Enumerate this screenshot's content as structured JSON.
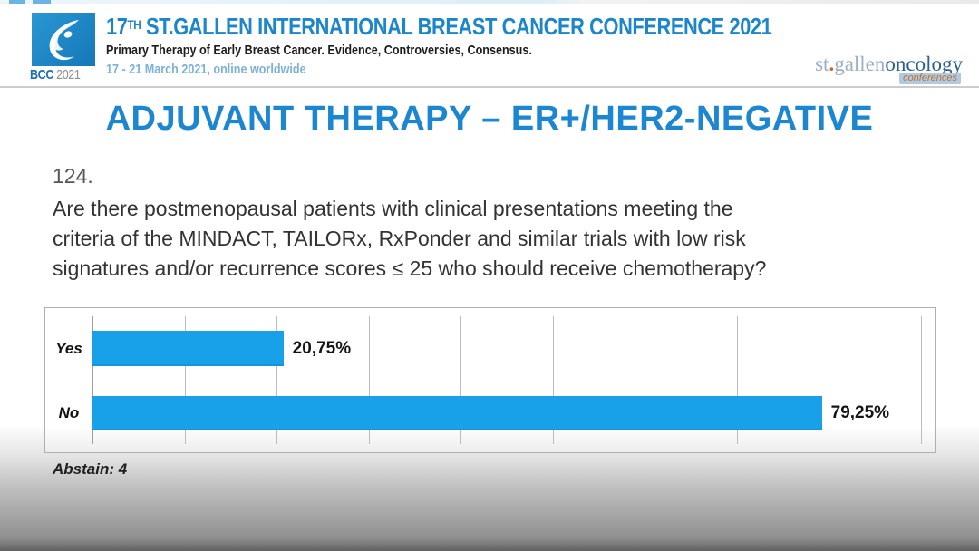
{
  "header": {
    "logo": {
      "bcc": "BCC",
      "year": "2021"
    },
    "title_num": "17",
    "title_sup": "TH",
    "title_rest": " ST.GALLEN INTERNATIONAL BREAST CANCER CONFERENCE 2021",
    "subtitle": "Primary Therapy of Early Breast Cancer. Evidence, Controversies, Consensus.",
    "dates": "17 - 21 March 2021, online worldwide",
    "right_logo": {
      "part1": "st",
      "dot": ".",
      "part2": "gallen",
      "part3": "oncology",
      "part4": "conferences"
    }
  },
  "slide": {
    "title": "ADJUVANT THERAPY – ER+/HER2-NEGATIVE",
    "question_number": "124.",
    "question_lines": [
      "Are there postmenopausal patients with clinical presentations meeting the",
      "criteria of the MINDACT, TAILORx, RxPonder and similar trials with low risk",
      "signatures and/or recurrence scores ≤ 25 who should receive chemotherapy?"
    ],
    "abstain_label": "Abstain: 4"
  },
  "chart_data": {
    "type": "bar",
    "orientation": "horizontal",
    "title": "",
    "categories": [
      "Yes",
      "No"
    ],
    "values": [
      20.75,
      79.25
    ],
    "value_labels": [
      "20,75%",
      "79,25%"
    ],
    "xlim": [
      0,
      91.5
    ],
    "gridline_interval": 10,
    "grid": true,
    "legend": false,
    "bar_color": "#18a0e8"
  },
  "colors": {
    "header_title_blue": "#1c86c9",
    "dates_blue": "#7db1d8",
    "main_title_blue": "#1d86d0",
    "bar_blue": "#18a0e8",
    "logo_square_blue": "#1787c8",
    "stgallen_gray_blue": "#9bb0c2",
    "oncology_dark_blue": "#2d5f90",
    "conferences_orange": "#c4702c"
  }
}
